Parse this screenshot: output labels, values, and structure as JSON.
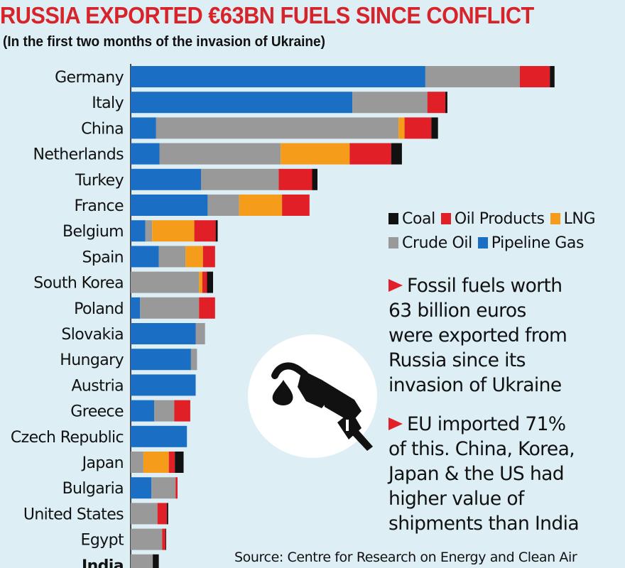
{
  "title": "RUSSIA EXPORTED €63BN FUELS SINCE CONFLICT",
  "subtitle": "(In the first two months of the invasion of Ukraine)",
  "legend": {
    "row1": [
      {
        "key": "coal",
        "label": "Coal",
        "color": "#111111"
      },
      {
        "key": "oil_products",
        "label": "Oil Products",
        "color": "#e01f26"
      },
      {
        "key": "lng",
        "label": "LNG",
        "color": "#f59c1a"
      }
    ],
    "row2": [
      {
        "key": "crude_oil",
        "label": "Crude Oil",
        "color": "#999999"
      },
      {
        "key": "pipeline_gas",
        "label": "Pipeline Gas",
        "color": "#1a6fc4"
      }
    ]
  },
  "notes": [
    "Fossil fuels worth\n63 billion euros\nwere exported from\nRussia since its\ninvasion of Ukraine",
    "EU imported 71%\nof this. China, Korea,\nJapan & the US had\nhigher value of\nshipments than India"
  ],
  "source": "Source: Centre for Research on Energy and Clean Air",
  "icon": "fuel-pump-icon",
  "chart_data": {
    "type": "bar",
    "orientation": "horizontal",
    "stacked": true,
    "categories": [
      "Germany",
      "Italy",
      "China",
      "Netherlands",
      "Turkey",
      "France",
      "Belgium",
      "Spain",
      "South Korea",
      "Poland",
      "Slovakia",
      "Hungary",
      "Austria",
      "Greece",
      "Czech Republic",
      "Japan",
      "Bulgaria",
      "United States",
      "Egypt",
      "India"
    ],
    "series": [
      {
        "name": "Pipeline Gas",
        "key": "pipeline_gas",
        "values": [
          440,
          331,
          38,
          43,
          105,
          115,
          22,
          42,
          0,
          14,
          97,
          90,
          97,
          35,
          84,
          0,
          31,
          0,
          0,
          0
        ]
      },
      {
        "name": "Crude Oil",
        "key": "crude_oil",
        "values": [
          141,
          112,
          362,
          181,
          116,
          47,
          10,
          40,
          102,
          88,
          14,
          9,
          0,
          30,
          0,
          19,
          36,
          40,
          47,
          33
        ]
      },
      {
        "name": "LNG",
        "key": "lng",
        "values": [
          0,
          0,
          9,
          103,
          0,
          64,
          63,
          26,
          5,
          0,
          0,
          0,
          0,
          0,
          0,
          38,
          0,
          0,
          0,
          0
        ]
      },
      {
        "name": "Oil Products",
        "key": "oil_products",
        "values": [
          45,
          27,
          40,
          62,
          50,
          41,
          32,
          18,
          7,
          24,
          0,
          0,
          0,
          24,
          0,
          9,
          3,
          14,
          5,
          0
        ]
      },
      {
        "name": "Coal",
        "key": "coal",
        "values": [
          7,
          3,
          10,
          16,
          8,
          0,
          3,
          0,
          9,
          0,
          0,
          0,
          0,
          0,
          0,
          13,
          0,
          2,
          1,
          9
        ]
      }
    ],
    "xlim": [
      0,
      700
    ],
    "axis": "none",
    "grid": false,
    "legend_position": "right"
  }
}
